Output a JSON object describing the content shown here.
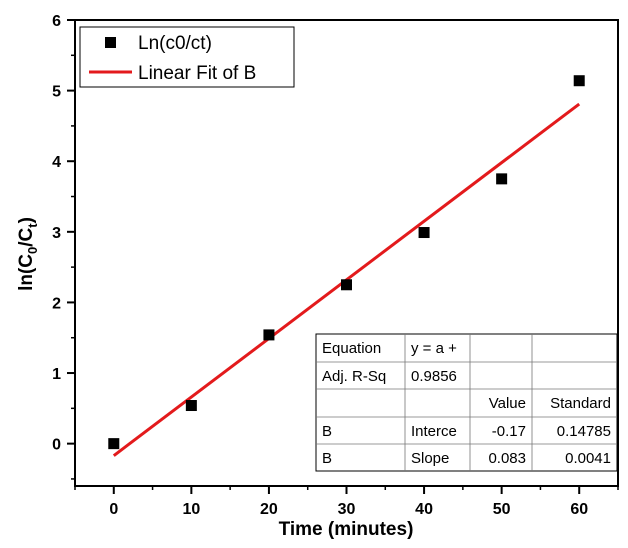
{
  "chart_data": {
    "type": "scatter",
    "xlabel": "Time (minutes)",
    "ylabel": "ln(C0/Ct)",
    "xlim": [
      -5,
      65
    ],
    "ylim": [
      -0.6,
      6
    ],
    "x_ticks": [
      0,
      10,
      20,
      30,
      40,
      50,
      60
    ],
    "y_ticks": [
      0,
      1,
      2,
      3,
      4,
      5,
      6
    ],
    "grid": false,
    "legend_position": "top-left",
    "series": [
      {
        "name": "Ln(c0/ct)",
        "kind": "scatter",
        "color": "#000000",
        "marker": "square",
        "x": [
          0,
          10,
          20,
          30,
          40,
          50,
          60
        ],
        "y": [
          0.0,
          0.54,
          1.54,
          2.25,
          2.99,
          3.75,
          5.14
        ]
      },
      {
        "name": "Linear Fit of B",
        "kind": "line",
        "color": "#e31a1c",
        "x": [
          0,
          60
        ],
        "y": [
          -0.17,
          4.81
        ]
      }
    ],
    "fit_table": {
      "rows": [
        [
          "Equation",
          "y = a +",
          "",
          ""
        ],
        [
          "Adj. R-Sq",
          "0.9856",
          "",
          ""
        ],
        [
          "",
          "",
          "Value",
          "Standard"
        ],
        [
          "B",
          "Interce",
          "-0.17",
          "0.14785"
        ],
        [
          "B",
          "Slope",
          "0.083",
          "0.0041"
        ]
      ]
    }
  }
}
